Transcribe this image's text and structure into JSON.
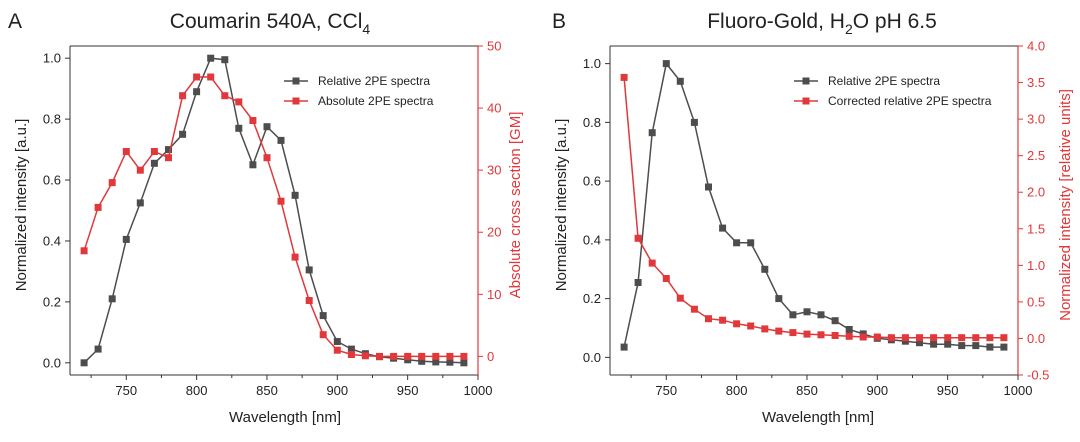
{
  "chart_data": [
    {
      "type": "line",
      "panel_label": "A",
      "title": "Coumarin 540A, CCl",
      "title_sub": "4",
      "xlabel": "Wavelength [nm]",
      "ylabel": "Normalized intensity [a.u.]",
      "y2label": "Absolute cross section [GM]",
      "xlim": [
        710,
        1000
      ],
      "ylim": [
        -0.04,
        1.04
      ],
      "y2lim": [
        -3,
        50
      ],
      "xticks": [
        "750",
        "800",
        "850",
        "900",
        "950",
        "1000"
      ],
      "yticks": [
        "0.0",
        "0.2",
        "0.4",
        "0.6",
        "0.8",
        "1.0"
      ],
      "y2ticks": [
        "0",
        "10",
        "20",
        "30",
        "40",
        "50"
      ],
      "series": [
        {
          "name": "Relative 2PE spectra",
          "axis": "left",
          "color": "#4d4d4d",
          "x": [
            720,
            730,
            740,
            750,
            760,
            770,
            780,
            790,
            800,
            810,
            820,
            830,
            840,
            850,
            860,
            870,
            880,
            890,
            900,
            910,
            920,
            930,
            940,
            950,
            960,
            970,
            980,
            990
          ],
          "y": [
            0.0,
            0.045,
            0.21,
            0.405,
            0.525,
            0.655,
            0.7,
            0.75,
            0.89,
            1.0,
            0.995,
            0.77,
            0.65,
            0.775,
            0.73,
            0.55,
            0.305,
            0.155,
            0.07,
            0.045,
            0.03,
            0.02,
            0.015,
            0.01,
            0.005,
            0.003,
            0.002,
            0.0
          ]
        },
        {
          "name": "Absolute 2PE spectra",
          "axis": "right",
          "color": "#e0383b",
          "x": [
            720,
            730,
            740,
            750,
            760,
            770,
            780,
            790,
            800,
            810,
            820,
            830,
            840,
            850,
            860,
            870,
            880,
            890,
            900,
            910,
            920,
            930,
            940,
            950,
            960,
            970,
            980,
            990
          ],
          "y": [
            17,
            24,
            28,
            33,
            30,
            33,
            32,
            42,
            45,
            45,
            42,
            41,
            38,
            32,
            25,
            16,
            9,
            3.5,
            1,
            0.3,
            0.1,
            0,
            0,
            0,
            0,
            0,
            0,
            0
          ]
        }
      ]
    },
    {
      "type": "line",
      "panel_label": "B",
      "title_pre": "Fluoro-Gold, H",
      "title_sub": "2",
      "title_post": "O pH 6.5",
      "xlabel": "Wavelength [nm]",
      "ylabel": "Normalized intensity [a.u.]",
      "y2label": "Normalized intensity [relative units]",
      "xlim": [
        710,
        1000
      ],
      "ylim": [
        -0.06,
        1.06
      ],
      "y2lim": [
        -0.5,
        4.0
      ],
      "xticks": [
        "750",
        "800",
        "850",
        "900",
        "950",
        "1000"
      ],
      "yticks": [
        "0.0",
        "0.2",
        "0.4",
        "0.6",
        "0.8",
        "1.0"
      ],
      "y2ticks": [
        "-0.5",
        "0.0",
        "0.5",
        "1.0",
        "1.5",
        "2.0",
        "2.5",
        "3.0",
        "3.5",
        "4.0"
      ],
      "series": [
        {
          "name": "Relative 2PE spectra",
          "axis": "left",
          "color": "#4d4d4d",
          "x": [
            720,
            730,
            740,
            750,
            760,
            770,
            780,
            790,
            800,
            810,
            820,
            830,
            840,
            850,
            860,
            870,
            880,
            890,
            900,
            910,
            920,
            930,
            940,
            950,
            960,
            970,
            980,
            990
          ],
          "y": [
            0.035,
            0.255,
            0.765,
            1.0,
            0.94,
            0.8,
            0.58,
            0.44,
            0.39,
            0.39,
            0.3,
            0.2,
            0.145,
            0.155,
            0.145,
            0.125,
            0.095,
            0.08,
            0.065,
            0.06,
            0.055,
            0.05,
            0.045,
            0.045,
            0.04,
            0.04,
            0.035,
            0.035
          ]
        },
        {
          "name": "Corrected relative 2PE spectra",
          "axis": "right",
          "color": "#e0383b",
          "x": [
            720,
            730,
            740,
            750,
            760,
            770,
            780,
            790,
            800,
            810,
            820,
            830,
            840,
            850,
            860,
            870,
            880,
            890,
            900,
            910,
            920,
            930,
            940,
            950,
            960,
            970,
            980,
            990
          ],
          "y": [
            3.57,
            1.37,
            1.03,
            0.82,
            0.55,
            0.4,
            0.27,
            0.25,
            0.2,
            0.17,
            0.13,
            0.1,
            0.08,
            0.06,
            0.05,
            0.04,
            0.03,
            0.02,
            0.02,
            0.01,
            0.01,
            0.01,
            0.01,
            0.01,
            0.01,
            0.01,
            0.01,
            0.01
          ]
        }
      ]
    }
  ]
}
